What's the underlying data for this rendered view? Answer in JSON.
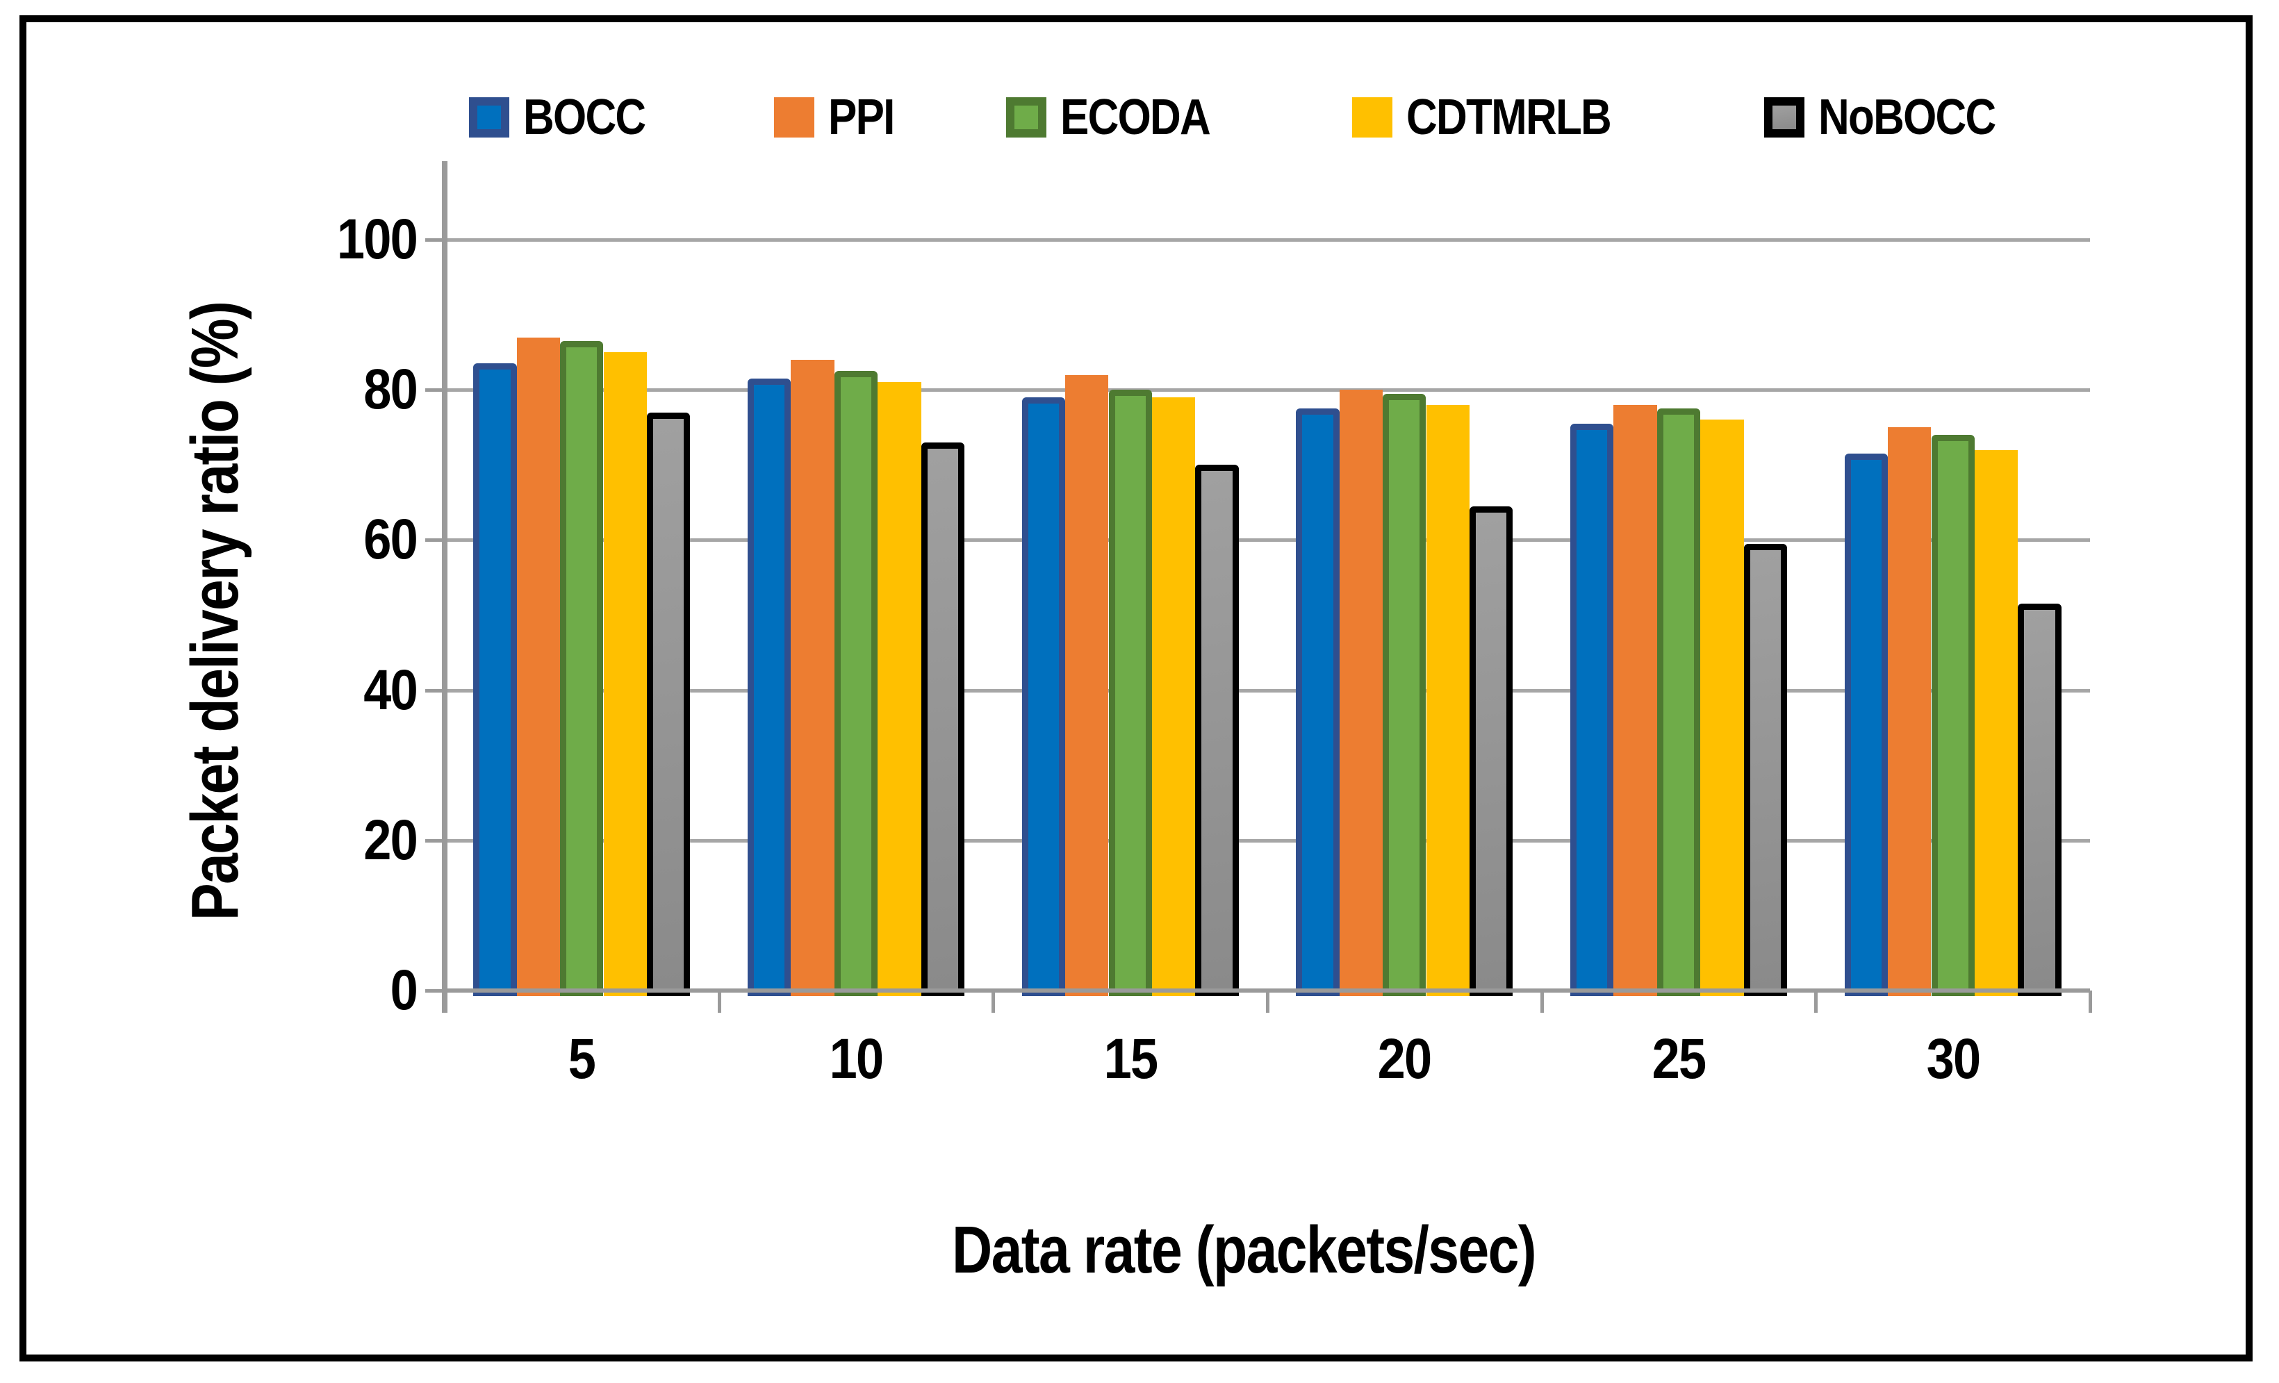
{
  "frame": {
    "border_color": "#000000"
  },
  "chart_data": {
    "type": "bar",
    "title": "",
    "xlabel": "Data rate (packets/sec)",
    "ylabel": "Packet delivery ratio (%)",
    "categories": [
      "5",
      "10",
      "15",
      "20",
      "25",
      "30"
    ],
    "series": [
      {
        "name": "BOCC",
        "fill": "#0070BE",
        "border": "#2F4F8F",
        "values": [
          83.5,
          81.5,
          79.0,
          77.5,
          75.5,
          71.5
        ]
      },
      {
        "name": "PPI",
        "fill": "#ED7D31",
        "border": "#ED7D31",
        "values": [
          87.0,
          84.0,
          82.0,
          80.0,
          78.0,
          75.0
        ]
      },
      {
        "name": "ECODA",
        "fill": "#6FAC49",
        "border": "#4E7A31",
        "values": [
          86.5,
          82.5,
          80.0,
          79.5,
          77.5,
          74.0
        ]
      },
      {
        "name": "CDTMRLB",
        "fill": "#FFC000",
        "border": "#FFC000",
        "values": [
          85.0,
          81.0,
          79.0,
          78.0,
          76.0,
          72.0
        ]
      },
      {
        "name": "NoBOCC",
        "fill": "#A0A0A0",
        "fill2": "#8A8A8A",
        "border": "#000000",
        "values": [
          77.0,
          73.0,
          70.0,
          64.5,
          59.5,
          51.5
        ]
      }
    ],
    "ylim": [
      0,
      110
    ],
    "yticks": [
      0,
      20,
      40,
      60,
      80,
      100
    ],
    "legend_position": "top",
    "grid": true,
    "gridline_color": "#A6A6A6",
    "axis_color": "#9A9A9A",
    "text_color": "#000000"
  }
}
